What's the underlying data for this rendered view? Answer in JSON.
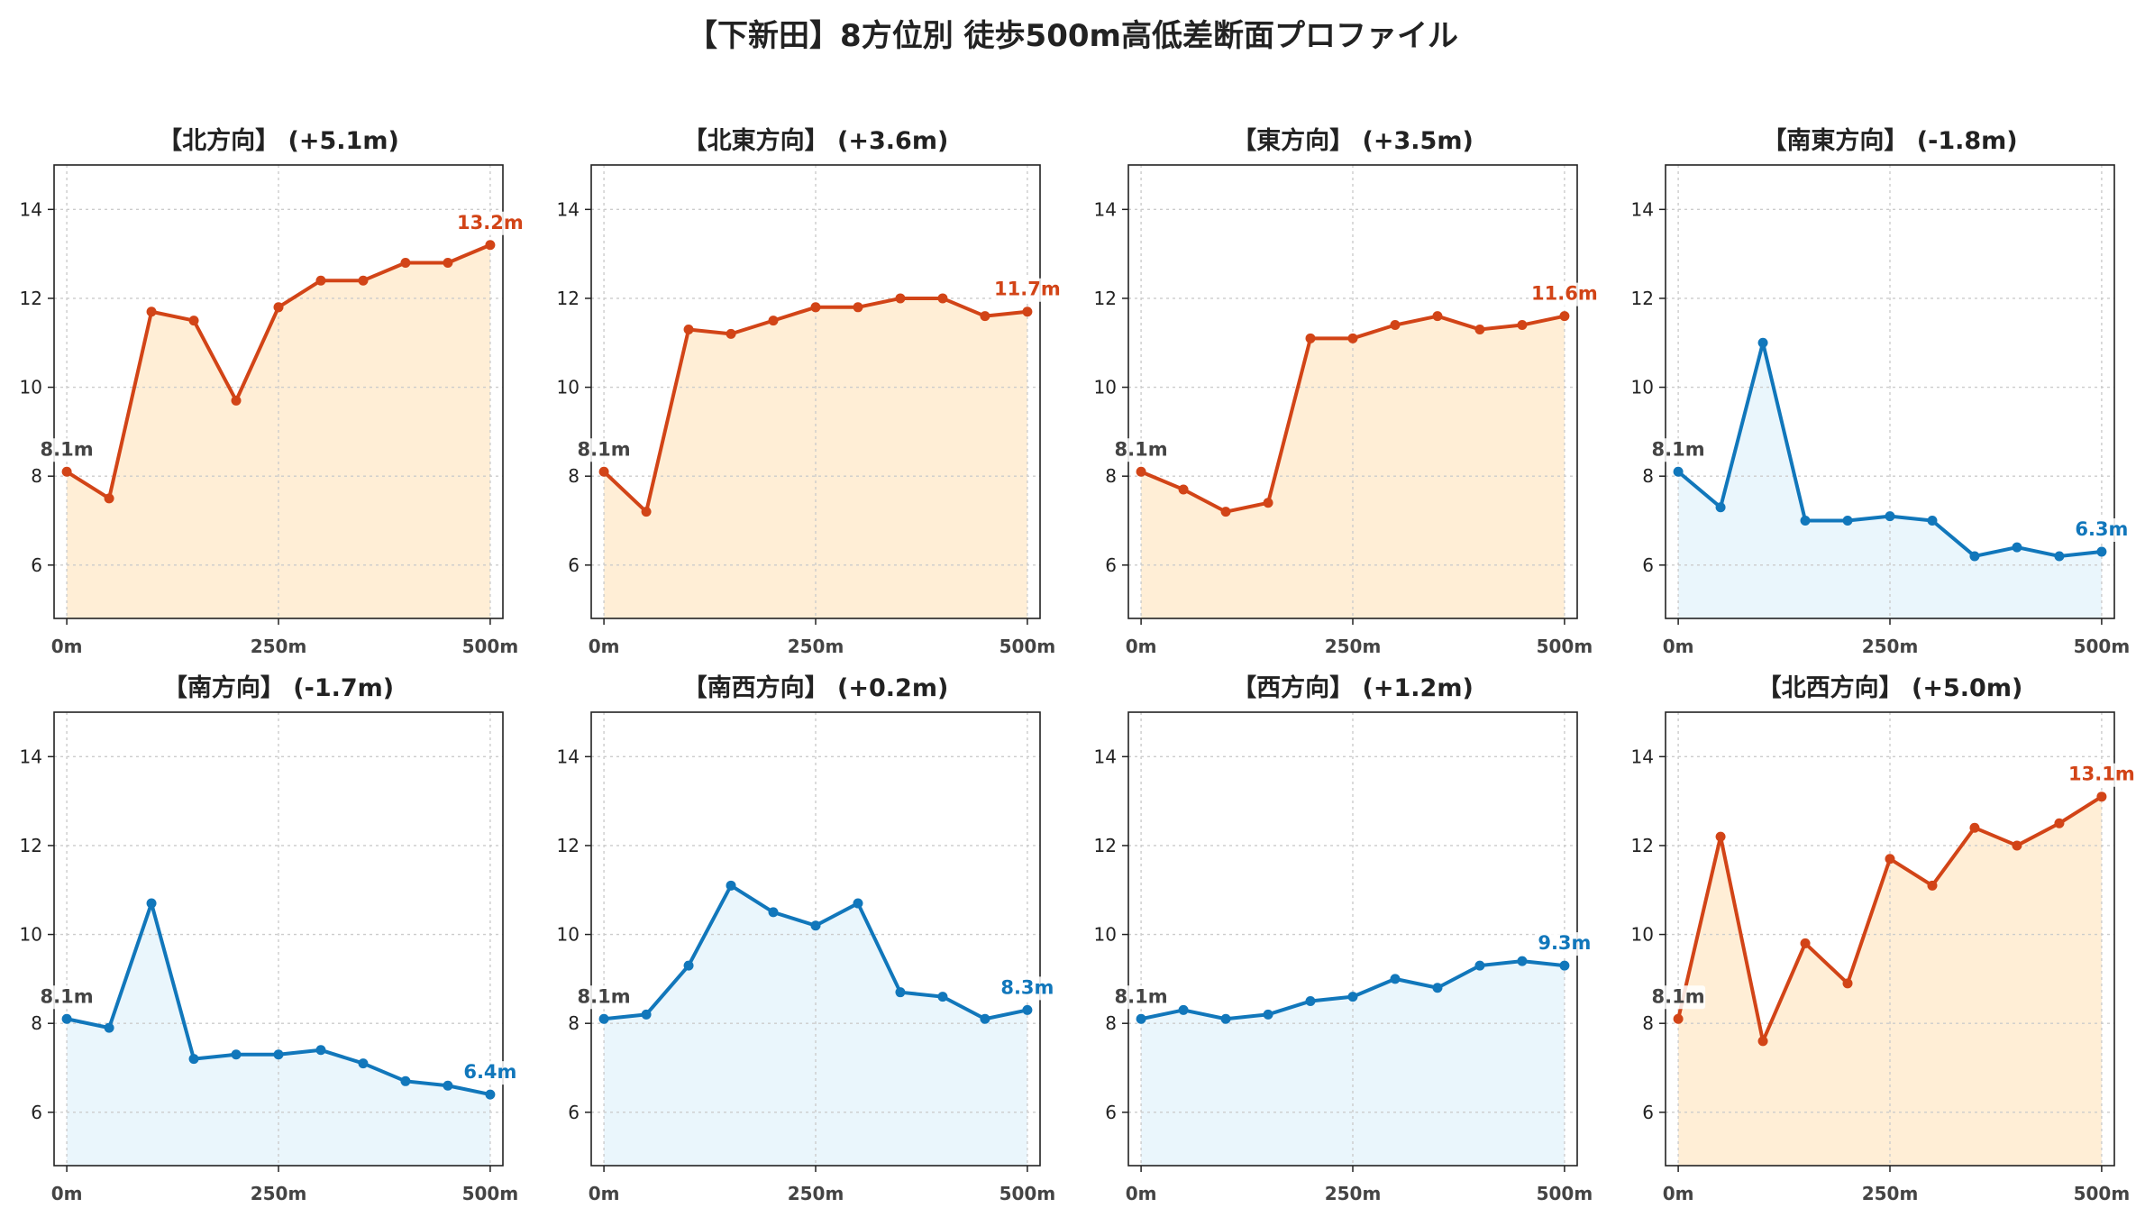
{
  "title": "【下新田】8方位別 徒歩500m高低差断面プロファイル",
  "colors": {
    "up": "#d24417",
    "down": "#1177bb",
    "start": "#444444",
    "up_fill": "#ffeed6",
    "down_fill": "#eaf6fc",
    "grid": "#cccccc"
  },
  "chart_data": [
    {
      "type": "area",
      "title": "【北方向】 (+5.1m)",
      "trend": "up",
      "x": [
        0,
        50,
        100,
        150,
        200,
        250,
        300,
        350,
        400,
        450,
        500
      ],
      "y": [
        8.1,
        7.5,
        11.7,
        11.5,
        9.7,
        11.8,
        12.4,
        12.4,
        12.8,
        12.8,
        13.2
      ],
      "start_label": "8.1m",
      "end_label": "13.2m",
      "xticks": [
        0,
        250,
        500
      ],
      "xtick_labels": [
        "0m",
        "250m",
        "500m"
      ],
      "yticks": [
        6,
        8,
        10,
        12,
        14
      ],
      "xlim": [
        -15,
        515
      ],
      "ylim": [
        4.8,
        15
      ],
      "grid": true
    },
    {
      "type": "area",
      "title": "【北東方向】 (+3.6m)",
      "trend": "up",
      "x": [
        0,
        50,
        100,
        150,
        200,
        250,
        300,
        350,
        400,
        450,
        500
      ],
      "y": [
        8.1,
        7.2,
        11.3,
        11.2,
        11.5,
        11.8,
        11.8,
        12.0,
        12.0,
        11.6,
        11.7
      ],
      "start_label": "8.1m",
      "end_label": "11.7m",
      "xticks": [
        0,
        250,
        500
      ],
      "xtick_labels": [
        "0m",
        "250m",
        "500m"
      ],
      "yticks": [
        6,
        8,
        10,
        12,
        14
      ],
      "xlim": [
        -15,
        515
      ],
      "ylim": [
        4.8,
        15
      ],
      "grid": true
    },
    {
      "type": "area",
      "title": "【東方向】 (+3.5m)",
      "trend": "up",
      "x": [
        0,
        50,
        100,
        150,
        200,
        250,
        300,
        350,
        400,
        450,
        500
      ],
      "y": [
        8.1,
        7.7,
        7.2,
        7.4,
        11.1,
        11.1,
        11.4,
        11.6,
        11.3,
        11.4,
        11.6
      ],
      "start_label": "8.1m",
      "end_label": "11.6m",
      "xticks": [
        0,
        250,
        500
      ],
      "xtick_labels": [
        "0m",
        "250m",
        "500m"
      ],
      "yticks": [
        6,
        8,
        10,
        12,
        14
      ],
      "xlim": [
        -15,
        515
      ],
      "ylim": [
        4.8,
        15
      ],
      "grid": true
    },
    {
      "type": "area",
      "title": "【南東方向】 (-1.8m)",
      "trend": "down",
      "x": [
        0,
        50,
        100,
        150,
        200,
        250,
        300,
        350,
        400,
        450,
        500
      ],
      "y": [
        8.1,
        7.3,
        11.0,
        7.0,
        7.0,
        7.1,
        7.0,
        6.2,
        6.4,
        6.2,
        6.3
      ],
      "start_label": "8.1m",
      "end_label": "6.3m",
      "xticks": [
        0,
        250,
        500
      ],
      "xtick_labels": [
        "0m",
        "250m",
        "500m"
      ],
      "yticks": [
        6,
        8,
        10,
        12,
        14
      ],
      "xlim": [
        -15,
        515
      ],
      "ylim": [
        4.8,
        15
      ],
      "grid": true
    },
    {
      "type": "area",
      "title": "【南方向】 (-1.7m)",
      "trend": "down",
      "x": [
        0,
        50,
        100,
        150,
        200,
        250,
        300,
        350,
        400,
        450,
        500
      ],
      "y": [
        8.1,
        7.9,
        10.7,
        7.2,
        7.3,
        7.3,
        7.4,
        7.1,
        6.7,
        6.6,
        6.4
      ],
      "start_label": "8.1m",
      "end_label": "6.4m",
      "xticks": [
        0,
        250,
        500
      ],
      "xtick_labels": [
        "0m",
        "250m",
        "500m"
      ],
      "yticks": [
        6,
        8,
        10,
        12,
        14
      ],
      "xlim": [
        -15,
        515
      ],
      "ylim": [
        4.8,
        15
      ],
      "grid": true
    },
    {
      "type": "area",
      "title": "【南西方向】 (+0.2m)",
      "trend": "down",
      "x": [
        0,
        50,
        100,
        150,
        200,
        250,
        300,
        350,
        400,
        450,
        500
      ],
      "y": [
        8.1,
        8.2,
        9.3,
        11.1,
        10.5,
        10.2,
        10.7,
        8.7,
        8.6,
        8.1,
        8.3
      ],
      "start_label": "8.1m",
      "end_label": "8.3m",
      "xticks": [
        0,
        250,
        500
      ],
      "xtick_labels": [
        "0m",
        "250m",
        "500m"
      ],
      "yticks": [
        6,
        8,
        10,
        12,
        14
      ],
      "xlim": [
        -15,
        515
      ],
      "ylim": [
        4.8,
        15
      ],
      "grid": true
    },
    {
      "type": "area",
      "title": "【西方向】 (+1.2m)",
      "trend": "down",
      "x": [
        0,
        50,
        100,
        150,
        200,
        250,
        300,
        350,
        400,
        450,
        500
      ],
      "y": [
        8.1,
        8.3,
        8.1,
        8.2,
        8.5,
        8.6,
        9.0,
        8.8,
        9.3,
        9.4,
        9.3
      ],
      "start_label": "8.1m",
      "end_label": "9.3m",
      "xticks": [
        0,
        250,
        500
      ],
      "xtick_labels": [
        "0m",
        "250m",
        "500m"
      ],
      "yticks": [
        6,
        8,
        10,
        12,
        14
      ],
      "xlim": [
        -15,
        515
      ],
      "ylim": [
        4.8,
        15
      ],
      "grid": true
    },
    {
      "type": "area",
      "title": "【北西方向】 (+5.0m)",
      "trend": "up",
      "x": [
        0,
        50,
        100,
        150,
        200,
        250,
        300,
        350,
        400,
        450,
        500
      ],
      "y": [
        8.1,
        12.2,
        7.6,
        9.8,
        8.9,
        11.7,
        11.1,
        12.4,
        12.0,
        12.5,
        13.1
      ],
      "start_label": "8.1m",
      "end_label": "13.1m",
      "xticks": [
        0,
        250,
        500
      ],
      "xtick_labels": [
        "0m",
        "250m",
        "500m"
      ],
      "yticks": [
        6,
        8,
        10,
        12,
        14
      ],
      "xlim": [
        -15,
        515
      ],
      "ylim": [
        4.8,
        15
      ],
      "grid": true
    }
  ]
}
